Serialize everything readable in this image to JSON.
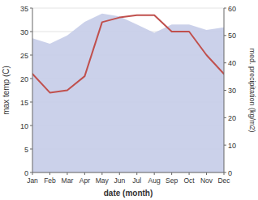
{
  "chart_data": {
    "type": "line",
    "categories": [
      "Jan",
      "Feb",
      "Mar",
      "Apr",
      "May",
      "Jun",
      "Jul",
      "Aug",
      "Sep",
      "Oct",
      "Nov",
      "Dec"
    ],
    "xlabel": "date (month)",
    "ylabel": "max temp (C)",
    "y2label": "med. precipitation (kg/m2)",
    "series": [
      {
        "type": "area",
        "axis": "y2",
        "color": "#c5cce8",
        "values": [
          49,
          47,
          50,
          55,
          58,
          57,
          54,
          51,
          54,
          54,
          52,
          53
        ]
      },
      {
        "type": "line",
        "color": "#c0504d",
        "values": [
          21,
          17,
          17.5,
          20.5,
          32,
          33,
          33.5,
          33.5,
          30,
          30,
          25,
          21
        ]
      }
    ],
    "ylim": [
      0,
      35
    ],
    "yticks": [
      0,
      5,
      10,
      15,
      20,
      25,
      30,
      35
    ],
    "y2lim": [
      0,
      60
    ],
    "y2ticks": [
      0,
      10,
      20,
      30,
      40,
      50,
      60
    ],
    "grid": true
  }
}
